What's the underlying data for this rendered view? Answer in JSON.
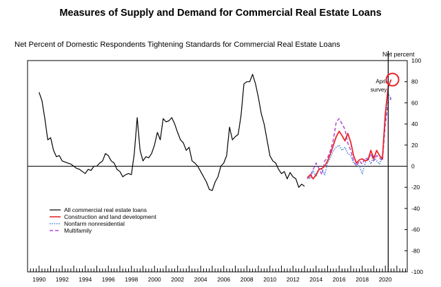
{
  "title": "Measures of Supply and Demand for Commercial Real Estate Loans",
  "subtitle": "Net Percent of Domestic Respondents Tightening Standards for Commercial Real Estate Loans",
  "chart_data": {
    "type": "line",
    "xlim": [
      1989.0,
      2021.9
    ],
    "ylim": [
      -100,
      100
    ],
    "yticks": [
      -100,
      -80,
      -60,
      -40,
      -20,
      0,
      20,
      40,
      60,
      80,
      100
    ],
    "xtick_labels": [
      "1990",
      "1992",
      "1994",
      "1996",
      "1998",
      "2000",
      "2002",
      "2004",
      "2006",
      "2008",
      "2010",
      "2012",
      "2014",
      "2016",
      "2018",
      "2020"
    ],
    "right_axis_label": "Net percent",
    "zero_line": true,
    "survey_marker": {
      "x": 2020.25,
      "label_line1": "April",
      "label_line2": "survey"
    },
    "highlight_circle": {
      "x": 2020.62,
      "y": 82
    },
    "series": [
      {
        "name": "All commercial real estate loans",
        "color": "#000000",
        "dash": "solid",
        "points": [
          [
            1990.0,
            70
          ],
          [
            1990.25,
            62
          ],
          [
            1990.5,
            45
          ],
          [
            1990.75,
            25
          ],
          [
            1991.0,
            27
          ],
          [
            1991.25,
            15
          ],
          [
            1991.5,
            9
          ],
          [
            1991.75,
            10
          ],
          [
            1992.0,
            5
          ],
          [
            1992.25,
            4
          ],
          [
            1992.5,
            3
          ],
          [
            1992.75,
            2
          ],
          [
            1993.0,
            0
          ],
          [
            1993.25,
            -2
          ],
          [
            1993.5,
            -3
          ],
          [
            1993.75,
            -5
          ],
          [
            1994.0,
            -7
          ],
          [
            1994.25,
            -3
          ],
          [
            1994.5,
            -4
          ],
          [
            1994.75,
            0
          ],
          [
            1995.0,
            0
          ],
          [
            1995.25,
            3
          ],
          [
            1995.5,
            5
          ],
          [
            1995.75,
            12
          ],
          [
            1996.0,
            10
          ],
          [
            1996.25,
            5
          ],
          [
            1996.5,
            3
          ],
          [
            1996.75,
            -3
          ],
          [
            1997.0,
            -5
          ],
          [
            1997.25,
            -10
          ],
          [
            1997.5,
            -8
          ],
          [
            1997.75,
            -7
          ],
          [
            1998.0,
            -8
          ],
          [
            1998.25,
            12
          ],
          [
            1998.5,
            46
          ],
          [
            1998.75,
            15
          ],
          [
            1999.0,
            5
          ],
          [
            1999.25,
            9
          ],
          [
            1999.5,
            8
          ],
          [
            1999.75,
            12
          ],
          [
            2000.0,
            20
          ],
          [
            2000.25,
            32
          ],
          [
            2000.5,
            25
          ],
          [
            2000.75,
            45
          ],
          [
            2001.0,
            42
          ],
          [
            2001.25,
            43
          ],
          [
            2001.5,
            46
          ],
          [
            2001.75,
            40
          ],
          [
            2002.0,
            32
          ],
          [
            2002.25,
            25
          ],
          [
            2002.5,
            22
          ],
          [
            2002.75,
            15
          ],
          [
            2003.0,
            18
          ],
          [
            2003.25,
            5
          ],
          [
            2003.5,
            3
          ],
          [
            2003.75,
            0
          ],
          [
            2004.0,
            -5
          ],
          [
            2004.25,
            -10
          ],
          [
            2004.5,
            -15
          ],
          [
            2004.75,
            -22
          ],
          [
            2005.0,
            -23
          ],
          [
            2005.25,
            -15
          ],
          [
            2005.5,
            -10
          ],
          [
            2005.75,
            0
          ],
          [
            2006.0,
            3
          ],
          [
            2006.25,
            10
          ],
          [
            2006.5,
            37
          ],
          [
            2006.75,
            25
          ],
          [
            2007.0,
            28
          ],
          [
            2007.25,
            30
          ],
          [
            2007.5,
            48
          ],
          [
            2007.75,
            78
          ],
          [
            2008.0,
            80
          ],
          [
            2008.25,
            80
          ],
          [
            2008.5,
            87
          ],
          [
            2008.75,
            78
          ],
          [
            2009.0,
            65
          ],
          [
            2009.25,
            50
          ],
          [
            2009.5,
            40
          ],
          [
            2009.75,
            25
          ],
          [
            2010.0,
            10
          ],
          [
            2010.25,
            5
          ],
          [
            2010.5,
            3
          ],
          [
            2010.75,
            -3
          ],
          [
            2011.0,
            -7
          ],
          [
            2011.25,
            -5
          ],
          [
            2011.5,
            -12
          ],
          [
            2011.75,
            -6
          ],
          [
            2012.0,
            -10
          ],
          [
            2012.25,
            -12
          ],
          [
            2012.5,
            -20
          ],
          [
            2012.75,
            -17
          ],
          [
            2013.0,
            -19
          ]
        ]
      },
      {
        "name": "Construction and land development",
        "color": "#e8262a",
        "dash": "solid",
        "points": [
          [
            2013.25,
            -11
          ],
          [
            2013.5,
            -8
          ],
          [
            2013.75,
            -12
          ],
          [
            2014.0,
            -8
          ],
          [
            2014.25,
            -3
          ],
          [
            2014.5,
            -2
          ],
          [
            2014.75,
            0
          ],
          [
            2015.0,
            5
          ],
          [
            2015.25,
            12
          ],
          [
            2015.5,
            20
          ],
          [
            2015.75,
            28
          ],
          [
            2016.0,
            33
          ],
          [
            2016.25,
            29
          ],
          [
            2016.5,
            24
          ],
          [
            2016.75,
            31
          ],
          [
            2017.0,
            23
          ],
          [
            2017.25,
            10
          ],
          [
            2017.5,
            3
          ],
          [
            2017.75,
            6
          ],
          [
            2018.0,
            7
          ],
          [
            2018.25,
            5
          ],
          [
            2018.5,
            6
          ],
          [
            2018.75,
            15
          ],
          [
            2019.0,
            7
          ],
          [
            2019.25,
            15
          ],
          [
            2019.5,
            10
          ],
          [
            2019.75,
            7
          ],
          [
            2020.0,
            50
          ],
          [
            2020.25,
            75
          ],
          [
            2020.5,
            82
          ]
        ]
      },
      {
        "name": "Nonfarm nonresidential",
        "color": "#3a7bd5",
        "dash": "dotted",
        "points": [
          [
            2013.25,
            -10
          ],
          [
            2013.5,
            -12
          ],
          [
            2013.75,
            -4
          ],
          [
            2014.0,
            -10
          ],
          [
            2014.25,
            -3
          ],
          [
            2014.5,
            -3
          ],
          [
            2014.75,
            -8
          ],
          [
            2015.0,
            3
          ],
          [
            2015.25,
            8
          ],
          [
            2015.5,
            15
          ],
          [
            2015.75,
            18
          ],
          [
            2016.0,
            20
          ],
          [
            2016.25,
            15
          ],
          [
            2016.5,
            18
          ],
          [
            2016.75,
            12
          ],
          [
            2017.0,
            10
          ],
          [
            2017.25,
            3
          ],
          [
            2017.5,
            2
          ],
          [
            2017.75,
            0
          ],
          [
            2018.0,
            -7
          ],
          [
            2018.25,
            3
          ],
          [
            2018.5,
            8
          ],
          [
            2018.75,
            2
          ],
          [
            2019.0,
            10
          ],
          [
            2019.25,
            5
          ],
          [
            2019.5,
            2
          ],
          [
            2019.75,
            10
          ],
          [
            2020.0,
            45
          ],
          [
            2020.25,
            70
          ],
          [
            2020.5,
            62
          ]
        ]
      },
      {
        "name": "Multifamily",
        "color": "#b044d8",
        "dash": "dashed",
        "points": [
          [
            2013.25,
            -12
          ],
          [
            2013.5,
            -9
          ],
          [
            2013.75,
            -3
          ],
          [
            2014.0,
            3
          ],
          [
            2014.25,
            -2
          ],
          [
            2014.5,
            -8
          ],
          [
            2014.75,
            5
          ],
          [
            2015.0,
            8
          ],
          [
            2015.25,
            15
          ],
          [
            2015.5,
            25
          ],
          [
            2015.75,
            42
          ],
          [
            2016.0,
            45
          ],
          [
            2016.25,
            40
          ],
          [
            2016.5,
            35
          ],
          [
            2016.75,
            22
          ],
          [
            2017.0,
            15
          ],
          [
            2017.25,
            5
          ],
          [
            2017.5,
            0
          ],
          [
            2017.75,
            5
          ],
          [
            2018.0,
            2
          ],
          [
            2018.25,
            8
          ],
          [
            2018.5,
            6
          ],
          [
            2018.75,
            12
          ],
          [
            2019.0,
            5
          ],
          [
            2019.25,
            10
          ],
          [
            2019.5,
            8
          ],
          [
            2019.75,
            5
          ],
          [
            2020.0,
            40
          ],
          [
            2020.25,
            60
          ],
          [
            2020.5,
            65
          ]
        ]
      }
    ],
    "legend_placement": "bottom-left",
    "grid": false
  }
}
